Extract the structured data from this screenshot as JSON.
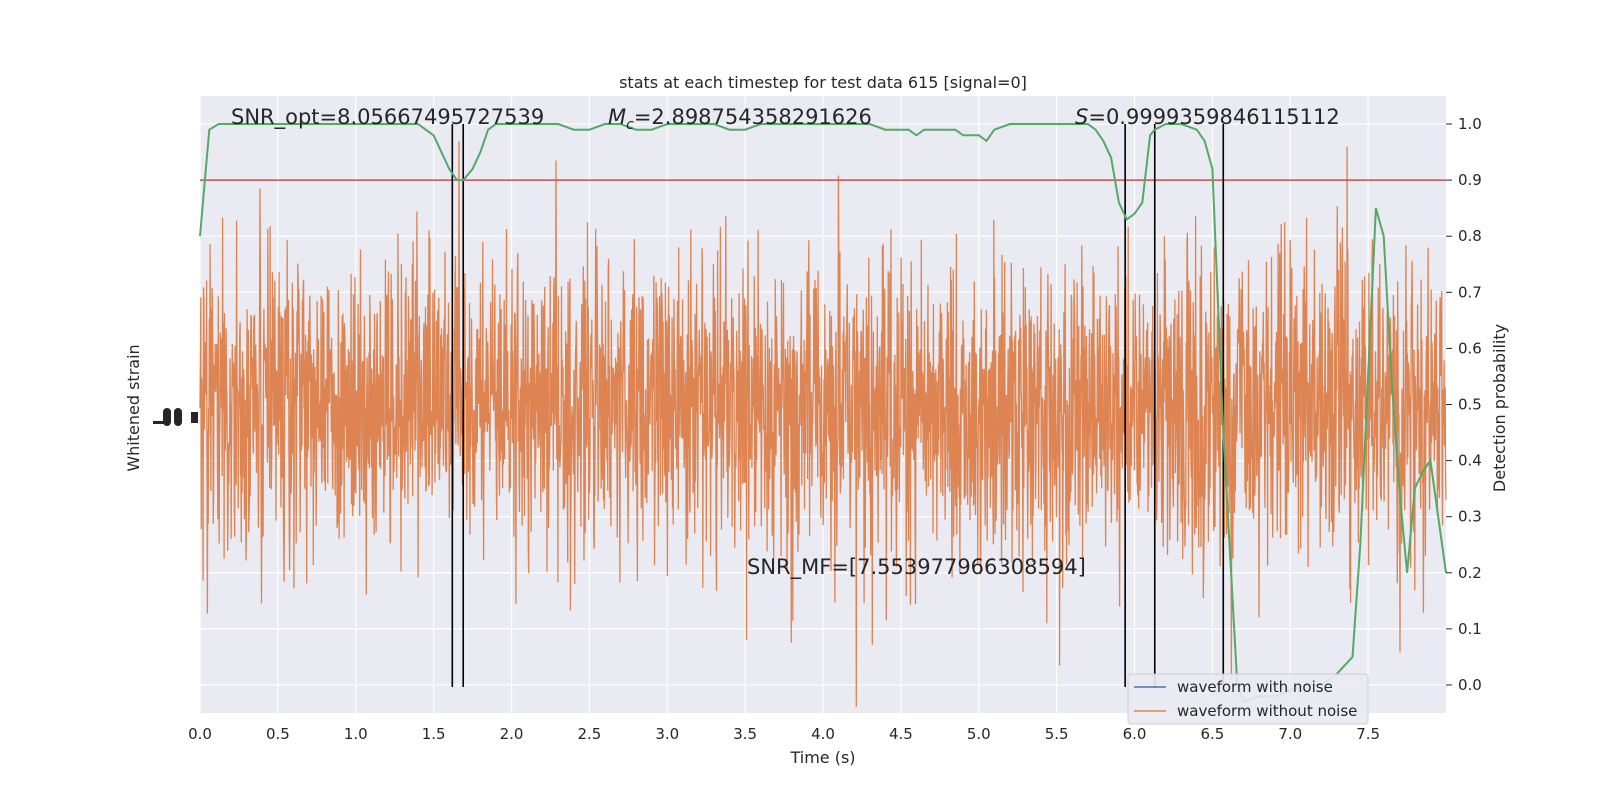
{
  "chart_data": {
    "type": "line",
    "title": "stats at each timestep for test data 615 [signal=0]",
    "xlabel": "Time (s)",
    "ylabel_left": "Whitened strain",
    "ylabel_right": "Detection probability",
    "xlim": [
      0,
      8
    ],
    "ylim_right": [
      -0.05,
      1.05
    ],
    "x_ticks": [
      "0.0",
      "0.5",
      "1.0",
      "1.5",
      "2.0",
      "2.5",
      "3.0",
      "3.5",
      "4.0",
      "4.5",
      "5.0",
      "5.5",
      "6.0",
      "6.5",
      "7.0",
      "7.5"
    ],
    "y_ticks_right": [
      "0.0",
      "0.1",
      "0.2",
      "0.3",
      "0.4",
      "0.5",
      "0.6",
      "0.7",
      "0.8",
      "0.9",
      "1.0"
    ],
    "grid": true,
    "legend_position": "lower-right",
    "annotations": {
      "snr_opt": "SNR_opt=8.05667495727539",
      "mc_symbol": "M",
      "mc_sub": "c",
      "mc_value": "=2.898754358291626",
      "s_symbol": "S",
      "s_value": "=0.9999359846115112",
      "snr_mf": "SNR_MF=[7.553977966308594]"
    },
    "threshold": 0.9,
    "vertical_lines_s": [
      1.62,
      1.69,
      5.94,
      6.13,
      6.57
    ],
    "detection_probability": {
      "x": [
        0.0,
        0.06,
        0.12,
        0.2,
        0.3,
        0.4,
        0.5,
        0.6,
        0.7,
        0.8,
        0.9,
        1.0,
        1.1,
        1.2,
        1.3,
        1.4,
        1.45,
        1.5,
        1.55,
        1.6,
        1.65,
        1.69,
        1.75,
        1.8,
        1.85,
        1.9,
        1.95,
        2.0,
        2.1,
        2.2,
        2.3,
        2.4,
        2.5,
        2.6,
        2.7,
        2.8,
        2.9,
        3.0,
        3.1,
        3.2,
        3.3,
        3.4,
        3.5,
        3.6,
        3.7,
        3.8,
        3.9,
        4.0,
        4.1,
        4.2,
        4.3,
        4.4,
        4.5,
        4.55,
        4.6,
        4.65,
        4.7,
        4.8,
        4.85,
        4.9,
        4.95,
        5.0,
        5.05,
        5.1,
        5.2,
        5.3,
        5.4,
        5.5,
        5.6,
        5.7,
        5.75,
        5.8,
        5.85,
        5.9,
        5.95,
        6.0,
        6.05,
        6.1,
        6.13,
        6.2,
        6.3,
        6.4,
        6.45,
        6.5,
        6.57,
        6.62,
        6.66,
        6.7,
        6.8,
        6.9,
        7.0,
        7.1,
        7.2,
        7.3,
        7.4,
        7.45,
        7.5,
        7.55,
        7.6,
        7.62,
        7.65,
        7.7,
        7.75,
        7.8,
        7.85,
        7.9,
        7.95,
        8.0
      ],
      "values": [
        0.8,
        0.99,
        1.0,
        1.0,
        1.0,
        1.0,
        1.0,
        1.0,
        1.0,
        1.0,
        1.0,
        1.0,
        1.0,
        1.0,
        1.0,
        1.0,
        0.99,
        0.98,
        0.95,
        0.92,
        0.9,
        0.9,
        0.92,
        0.95,
        0.99,
        1.0,
        1.0,
        1.0,
        1.0,
        1.0,
        1.0,
        0.99,
        0.99,
        1.0,
        1.0,
        0.99,
        0.99,
        1.0,
        1.0,
        1.0,
        1.0,
        0.99,
        0.99,
        1.0,
        1.0,
        1.0,
        1.0,
        1.0,
        1.0,
        1.0,
        1.0,
        0.99,
        0.99,
        0.99,
        0.98,
        0.99,
        0.99,
        0.99,
        0.99,
        0.98,
        0.98,
        0.98,
        0.97,
        0.99,
        1.0,
        1.0,
        1.0,
        1.0,
        1.0,
        1.0,
        0.99,
        0.97,
        0.94,
        0.86,
        0.83,
        0.84,
        0.86,
        0.98,
        0.99,
        1.0,
        1.0,
        0.99,
        0.97,
        0.92,
        0.45,
        0.2,
        0.0,
        -0.03,
        -0.02,
        -0.02,
        -0.01,
        0.0,
        0.0,
        0.02,
        0.05,
        0.25,
        0.55,
        0.85,
        0.8,
        0.7,
        0.55,
        0.35,
        0.2,
        0.35,
        0.38,
        0.4,
        0.3,
        0.2
      ]
    },
    "series": [
      {
        "name": "waveform with noise",
        "color": "#4c72b0"
      },
      {
        "name": "waveform without noise",
        "color": "#dd8452"
      }
    ],
    "colors": {
      "background": "#eaeaf2",
      "grid": "#ffffff",
      "probability": "#55a868",
      "threshold": "#c44e52",
      "vline": "#000000"
    }
  }
}
